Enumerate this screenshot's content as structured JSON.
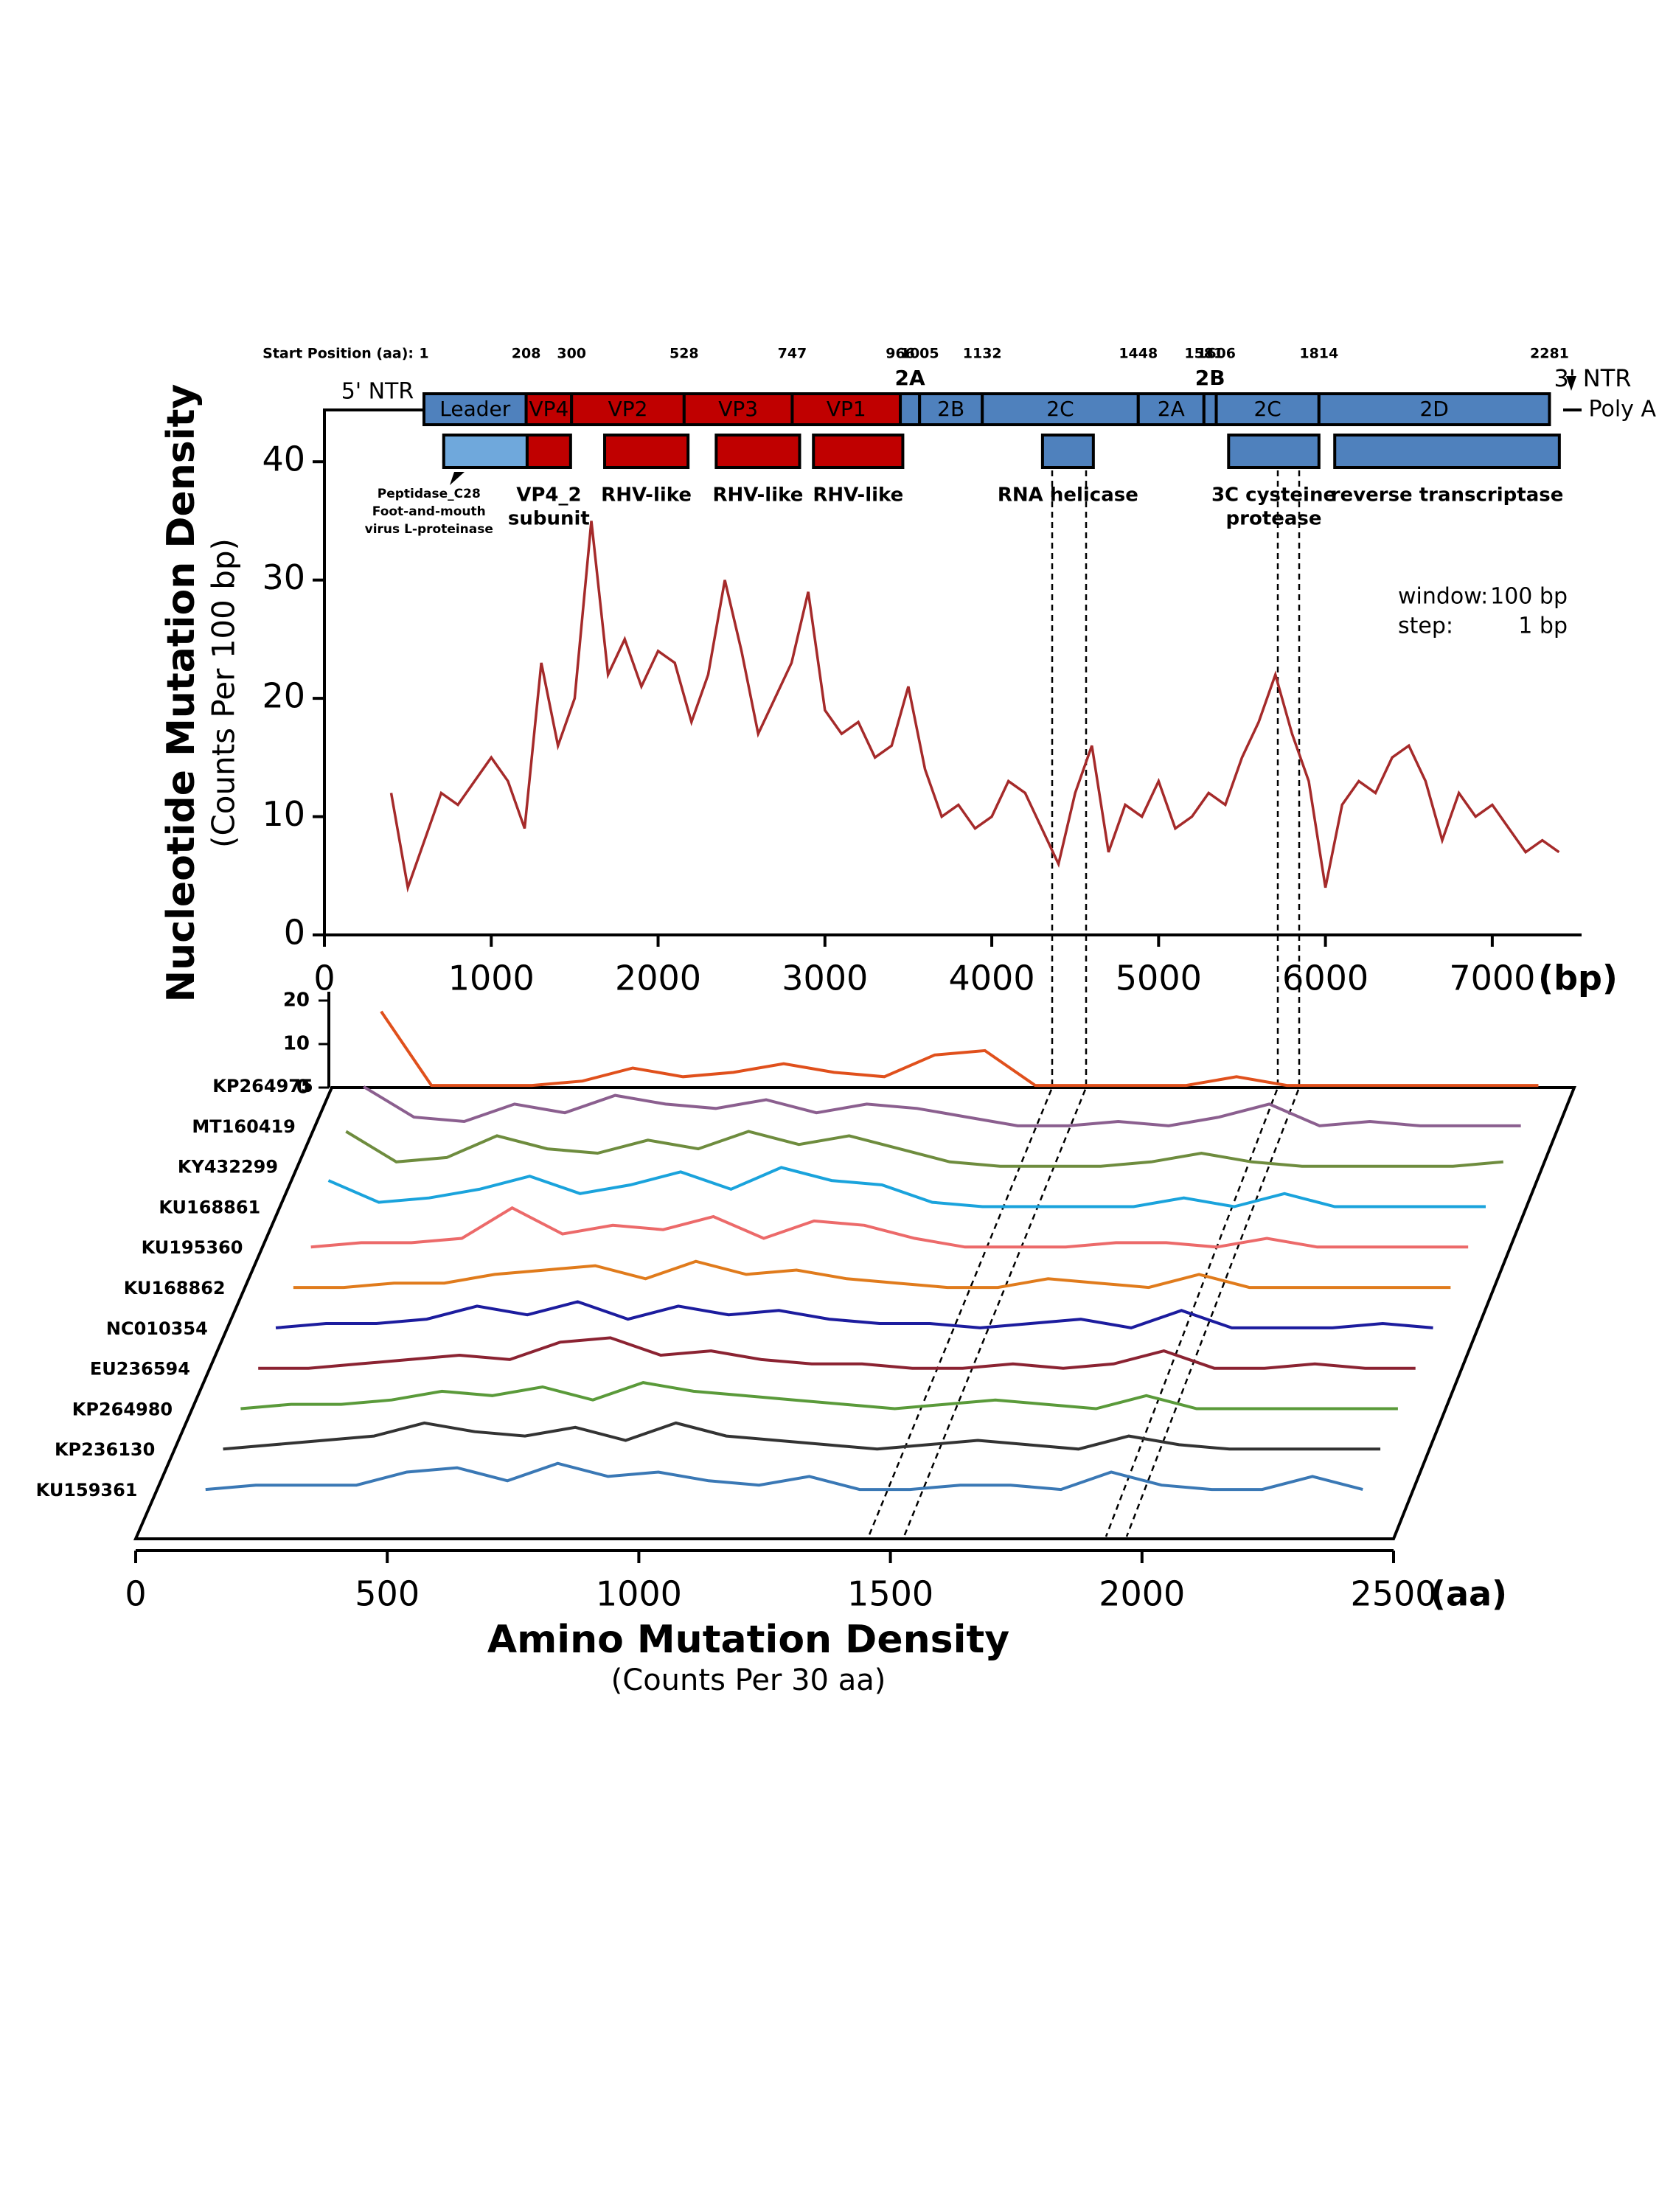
{
  "chart_data": [
    {
      "type": "line",
      "ylabel": "Nucleotide Mutation Density",
      "ylabel_sub": "(Counts  Per  100 bp)",
      "xunit": "(bp)",
      "x": [
        400,
        500,
        600,
        700,
        800,
        900,
        1000,
        1100,
        1200,
        1300,
        1400,
        1500,
        1600,
        1700,
        1800,
        1900,
        2000,
        2100,
        2200,
        2300,
        2400,
        2500,
        2600,
        2700,
        2800,
        2900,
        3000,
        3100,
        3200,
        3300,
        3400,
        3500,
        3600,
        3700,
        3800,
        3900,
        4000,
        4100,
        4200,
        4300,
        4400,
        4500,
        4600,
        4700,
        4800,
        4900,
        5000,
        5100,
        5200,
        5300,
        5400,
        5500,
        5600,
        5700,
        5800,
        5900,
        6000,
        6100,
        6200,
        6300,
        6400,
        6500,
        6600,
        6700,
        6800,
        6900,
        7000,
        7100,
        7200,
        7300,
        7400
      ],
      "series": [
        {
          "color": "#a52a2a",
          "values": [
            12,
            4,
            8,
            12,
            11,
            13,
            15,
            13,
            9,
            23,
            16,
            20,
            35,
            22,
            25,
            21,
            24,
            23,
            18,
            22,
            30,
            24,
            17,
            20,
            23,
            29,
            19,
            17,
            18,
            15,
            16,
            21,
            14,
            10,
            11,
            9,
            10,
            13,
            12,
            9,
            6,
            12,
            16,
            7,
            11,
            10,
            13,
            9,
            10,
            12,
            11,
            15,
            18,
            22,
            17,
            13,
            4,
            11,
            13,
            12,
            15,
            16,
            13,
            8,
            12,
            10,
            11,
            9,
            7,
            8,
            7
          ]
        }
      ],
      "xlim": [
        0,
        7500
      ],
      "ylim": [
        0,
        45
      ],
      "xticks": [
        0,
        1000,
        2000,
        3000,
        4000,
        5000,
        6000,
        7000
      ],
      "yticks": [
        0,
        10,
        20,
        30,
        40
      ],
      "annotations": [
        "window:",
        "100 bp",
        "step:",
        "1 bp"
      ],
      "genome_map": {
        "start_label": "Start Position (aa):",
        "positions": [
          1,
          208,
          300,
          528,
          747,
          966,
          1005,
          1132,
          1448,
          1581,
          1606,
          1814,
          2281
        ],
        "segments": [
          {
            "label": "Leader",
            "color": "#4f81bd"
          },
          {
            "label": "VP4",
            "color": "#c00000"
          },
          {
            "label": "VP2",
            "color": "#c00000"
          },
          {
            "label": "VP3",
            "color": "#c00000"
          },
          {
            "label": "VP1",
            "color": "#c00000"
          },
          {
            "label": "2A",
            "color": "#4f81bd"
          },
          {
            "label": "2B",
            "color": "#4f81bd"
          },
          {
            "label": "2C",
            "color": "#4f81bd"
          },
          {
            "label": "2A",
            "color": "#4f81bd"
          },
          {
            "label": "2B",
            "color": "#4f81bd"
          },
          {
            "label": "2C",
            "color": "#4f81bd"
          },
          {
            "label": "2D",
            "color": "#4f81bd"
          }
        ],
        "ntr5": "5' NTR",
        "ntr3": "3' NTR",
        "poly_a": "Poly A",
        "domains": [
          {
            "label": [
              "Peptidase_C28",
              "Foot-and-mouth",
              "virus L-proteinase"
            ],
            "start": 41,
            "end": 210,
            "color": "#6fa8dc"
          },
          {
            "label": [
              "VP4_2",
              "subunit"
            ],
            "start": 210,
            "end": 298,
            "color": "#c00000"
          },
          {
            "label": [
              "RHV-like"
            ],
            "start": 367,
            "end": 536,
            "color": "#c00000"
          },
          {
            "label": [
              "RHV-like"
            ],
            "start": 593,
            "end": 762,
            "color": "#c00000"
          },
          {
            "label": [
              "RHV-like"
            ],
            "start": 790,
            "end": 971,
            "color": "#c00000"
          },
          {
            "label": [
              "RNA helicase"
            ],
            "start": 1254,
            "end": 1357,
            "color": "#4f81bd"
          },
          {
            "label": [
              "3C cysteine",
              "protease"
            ],
            "start": 1631,
            "end": 1814,
            "color": "#4f81bd"
          },
          {
            "label": [
              "reverse transcriptase"
            ],
            "start": 1846,
            "end": 2301,
            "color": "#4f81bd"
          }
        ]
      }
    },
    {
      "type": "waterfall",
      "title": "Amino Mutation Density",
      "subtitle": "(Counts Per 30 aa)",
      "xunit": "(aa)",
      "x": [
        100,
        200,
        300,
        400,
        500,
        600,
        700,
        800,
        900,
        1000,
        1100,
        1200,
        1300,
        1400,
        1500,
        1600,
        1700,
        1800,
        1900,
        2000,
        2100,
        2200,
        2300,
        2400
      ],
      "xlim": [
        0,
        2500
      ],
      "xticks": [
        0,
        500,
        1000,
        1500,
        2000,
        2500
      ],
      "ylim": [
        0,
        20
      ],
      "yticks": [
        0,
        10,
        20
      ],
      "series": [
        {
          "name": "KP264975",
          "color": "#e0501c",
          "values": [
            18,
            1,
            1,
            1,
            2,
            5,
            3,
            4,
            6,
            4,
            3,
            8,
            9,
            1,
            1,
            1,
            1,
            3,
            1,
            1,
            1,
            1,
            1,
            1
          ]
        },
        {
          "name": "MT160419",
          "color": "#8b5f8f",
          "values": [
            10,
            3,
            2,
            6,
            4,
            8,
            6,
            5,
            7,
            4,
            6,
            5,
            3,
            1,
            1,
            2,
            1,
            3,
            6,
            1,
            2,
            1,
            1,
            1
          ]
        },
        {
          "name": "KY432299",
          "color": "#6e8c3e",
          "values": [
            9,
            2,
            3,
            8,
            5,
            4,
            7,
            5,
            9,
            6,
            8,
            5,
            2,
            1,
            1,
            1,
            2,
            4,
            2,
            1,
            1,
            1,
            1,
            2
          ]
        },
        {
          "name": "KU168861",
          "color": "#1aa3dc",
          "values": [
            7,
            2,
            3,
            5,
            8,
            4,
            6,
            9,
            5,
            10,
            7,
            6,
            2,
            1,
            1,
            1,
            1,
            3,
            1,
            4,
            1,
            1,
            1,
            1
          ]
        },
        {
          "name": "KU195360",
          "color": "#ec6a6a",
          "values": [
            1,
            2,
            2,
            3,
            10,
            4,
            6,
            5,
            8,
            3,
            7,
            6,
            3,
            1,
            1,
            1,
            2,
            2,
            1,
            3,
            1,
            1,
            1,
            1
          ]
        },
        {
          "name": "KU168862",
          "color": "#e07b1c",
          "values": [
            1,
            1,
            2,
            2,
            4,
            5,
            6,
            3,
            7,
            4,
            5,
            3,
            2,
            1,
            1,
            3,
            2,
            1,
            4,
            1,
            1,
            1,
            1,
            1
          ]
        },
        {
          "name": "NC010354",
          "color": "#1c1c9e",
          "values": [
            1,
            2,
            2,
            3,
            6,
            4,
            7,
            3,
            6,
            4,
            5,
            3,
            2,
            2,
            1,
            2,
            3,
            1,
            5,
            1,
            1,
            1,
            2,
            1
          ]
        },
        {
          "name": "EU236594",
          "color": "#8b2332",
          "values": [
            1,
            1,
            2,
            3,
            4,
            3,
            7,
            8,
            4,
            5,
            3,
            2,
            2,
            1,
            1,
            2,
            1,
            2,
            5,
            1,
            1,
            2,
            1,
            1
          ]
        },
        {
          "name": "KP264980",
          "color": "#5a9a3a",
          "values": [
            1,
            2,
            2,
            3,
            5,
            4,
            6,
            3,
            7,
            5,
            4,
            3,
            2,
            1,
            2,
            3,
            2,
            1,
            4,
            1,
            1,
            1,
            1,
            1
          ]
        },
        {
          "name": "KP236130",
          "color": "#333333",
          "values": [
            1,
            2,
            3,
            4,
            7,
            5,
            4,
            6,
            3,
            7,
            4,
            3,
            2,
            1,
            2,
            3,
            2,
            1,
            4,
            2,
            1,
            1,
            1,
            1
          ]
        },
        {
          "name": "KU159361",
          "color": "#3a78b5",
          "values": [
            1,
            2,
            2,
            2,
            5,
            6,
            3,
            7,
            4,
            5,
            3,
            2,
            4,
            1,
            1,
            2,
            2,
            1,
            5,
            2,
            1,
            1,
            4,
            1
          ]
        }
      ]
    }
  ]
}
